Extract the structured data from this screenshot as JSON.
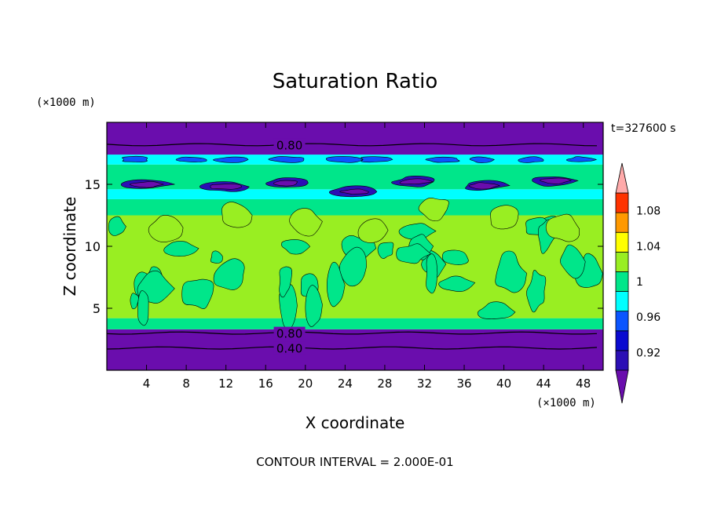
{
  "chart_data": {
    "type": "heatmap",
    "title": "Saturation Ratio",
    "xlabel": "X coordinate",
    "ylabel": "Z coordinate",
    "x_unit": "(×1000 m)",
    "y_unit": "(×1000 m)",
    "xlim": [
      0,
      50
    ],
    "ylim": [
      0,
      20
    ],
    "x_ticks": [
      4,
      8,
      12,
      16,
      20,
      24,
      28,
      32,
      36,
      40,
      44,
      48
    ],
    "y_ticks": [
      5,
      10,
      15
    ],
    "time_label": "t=327600 s",
    "footer": "CONTOUR INTERVAL = 2.000E-01",
    "colorbar": {
      "levels": [
        0.9,
        0.92,
        0.94,
        0.96,
        0.98,
        1.0,
        1.02,
        1.04,
        1.06,
        1.08,
        1.1
      ],
      "labels": [
        "0.92",
        "0.96",
        "1",
        "1.04",
        "1.08"
      ],
      "label_values": [
        0.92,
        0.96,
        1.0,
        1.04,
        1.08
      ],
      "colors": [
        "#6a0dad",
        "#2b0fb5",
        "#0a0ad0",
        "#0a55ff",
        "#00ffff",
        "#00e68a",
        "#99ee22",
        "#ffff00",
        "#ff9900",
        "#ff3300",
        "#ffaaaa"
      ],
      "under_color": "#6a0dad",
      "over_color": "#ffaaaa"
    },
    "contours": [
      {
        "label": "0.80",
        "z": 18.2
      },
      {
        "label": "0.80",
        "z": 3.0
      },
      {
        "label": "0.40",
        "z": 1.8
      }
    ],
    "bands": [
      {
        "z0": 0.0,
        "z1": 3.3,
        "color": "#6a0dad"
      },
      {
        "z0": 3.3,
        "z1": 4.2,
        "color": "#00e68a"
      },
      {
        "z0": 4.2,
        "z1": 12.5,
        "color": "#99ee22"
      },
      {
        "z0": 12.5,
        "z1": 13.8,
        "color": "#00e68a"
      },
      {
        "z0": 13.8,
        "z1": 14.6,
        "color": "#00ffff"
      },
      {
        "z0": 14.6,
        "z1": 16.6,
        "color": "#00e68a"
      },
      {
        "z0": 16.6,
        "z1": 17.4,
        "color": "#00ffff"
      },
      {
        "z0": 17.4,
        "z1": 20.0,
        "color": "#6a0dad"
      }
    ]
  }
}
